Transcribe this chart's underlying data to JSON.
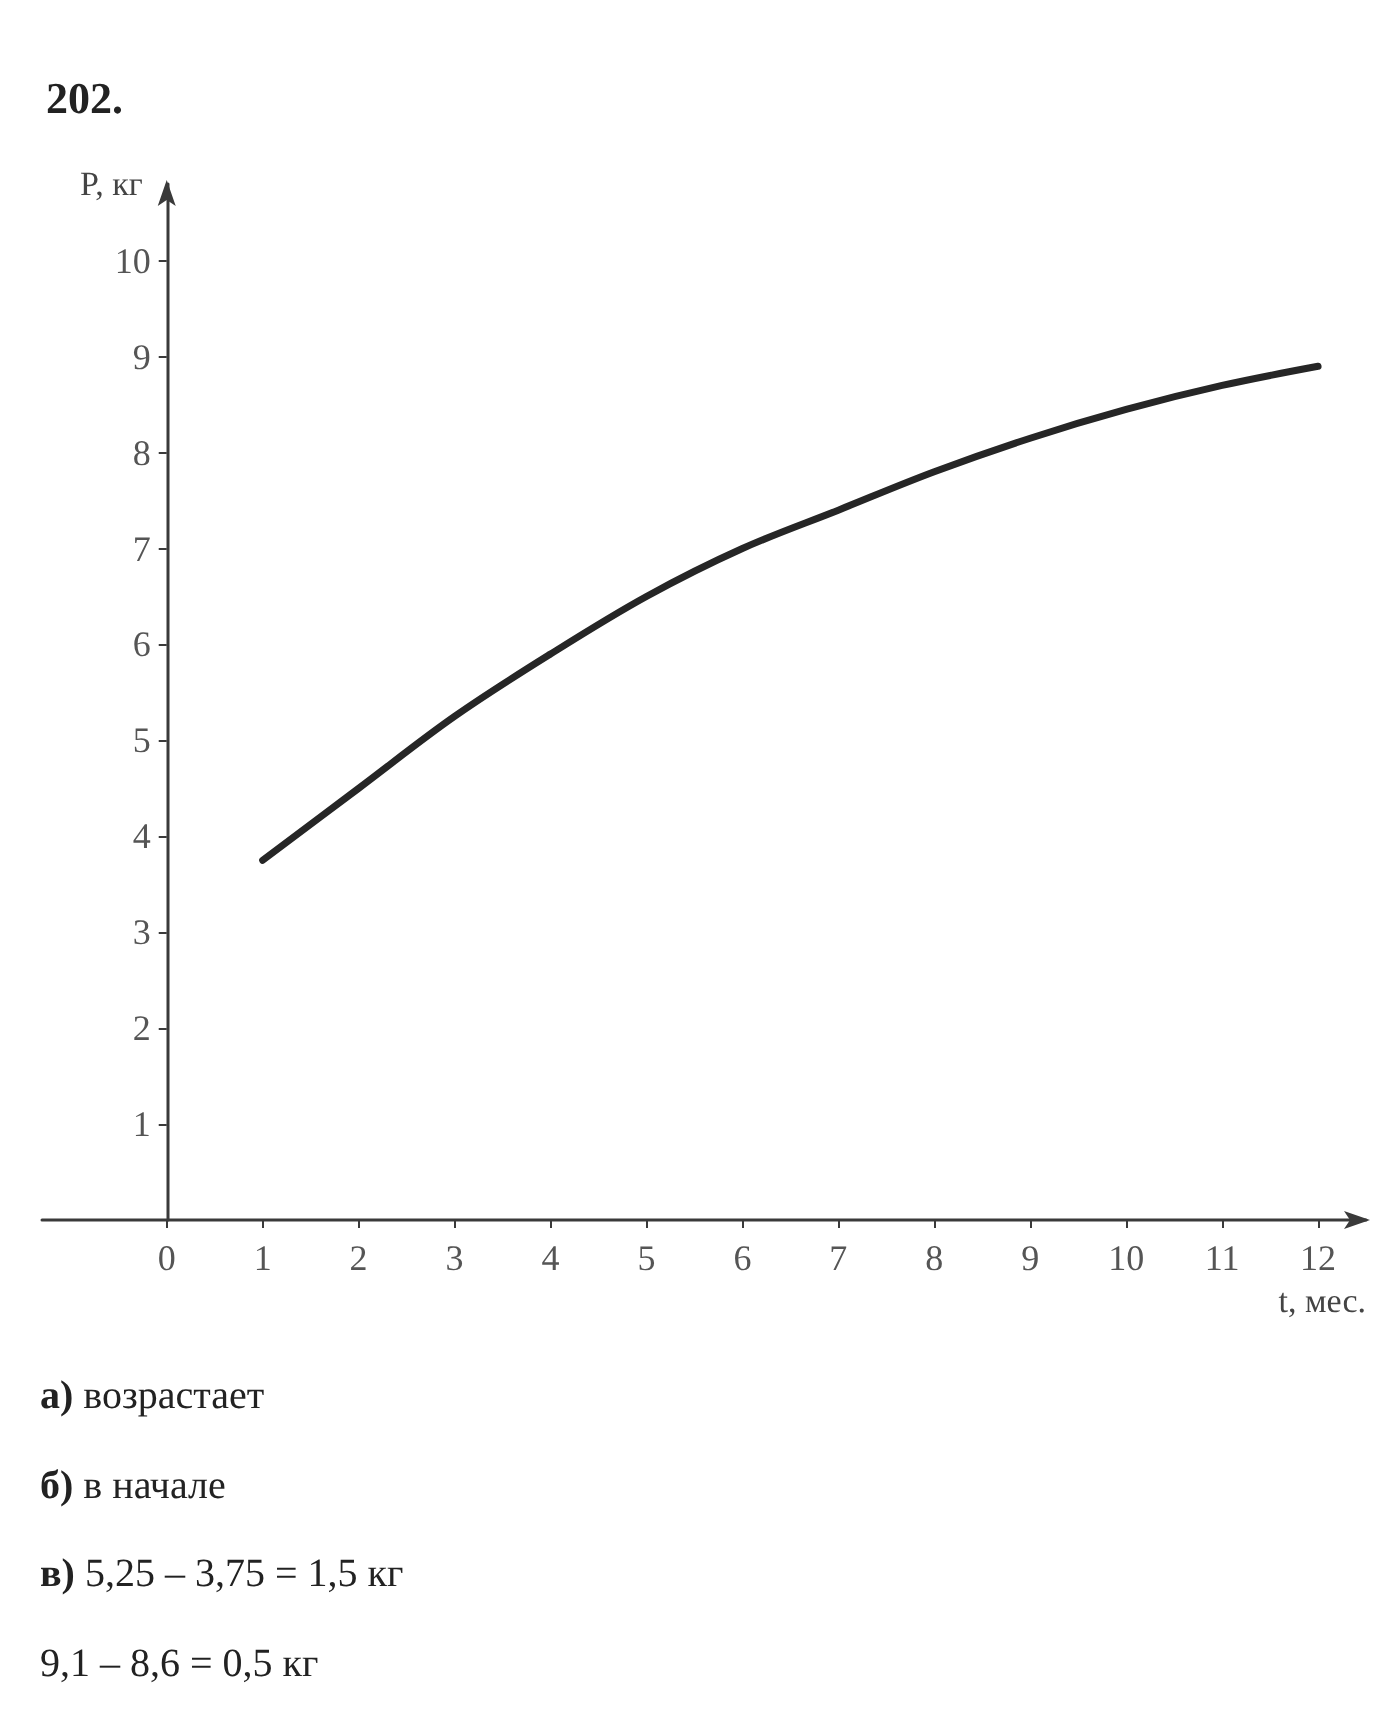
{
  "chart_data": {
    "type": "line",
    "title": "202.",
    "xlabel": "t, мес.",
    "ylabel": "P, кг",
    "x": [
      1,
      2,
      3,
      4,
      5,
      6,
      7,
      8,
      9,
      10,
      11,
      12
    ],
    "series": [
      {
        "color": "#262626",
        "values": [
          3.75,
          4.5,
          5.25,
          5.9,
          6.5,
          7.0,
          7.4,
          7.8,
          8.15,
          8.45,
          8.7,
          8.9
        ]
      }
    ],
    "xlim": [
      -1.3,
      12.5
    ],
    "ylim": [
      0,
      10.8
    ],
    "xticks": [
      0,
      1,
      2,
      3,
      4,
      5,
      6,
      7,
      8,
      9,
      10,
      11,
      12
    ],
    "yticks": [
      1,
      2,
      3,
      4,
      5,
      6,
      7,
      8,
      9,
      10
    ],
    "grid": false,
    "line_style": "solid",
    "annotations": [
      "а) возрастает",
      "б) в начале",
      "в) 5,25 – 3,75 = 1,5 кг",
      "9,1 – 8,6 = 0,5 кг"
    ]
  }
}
